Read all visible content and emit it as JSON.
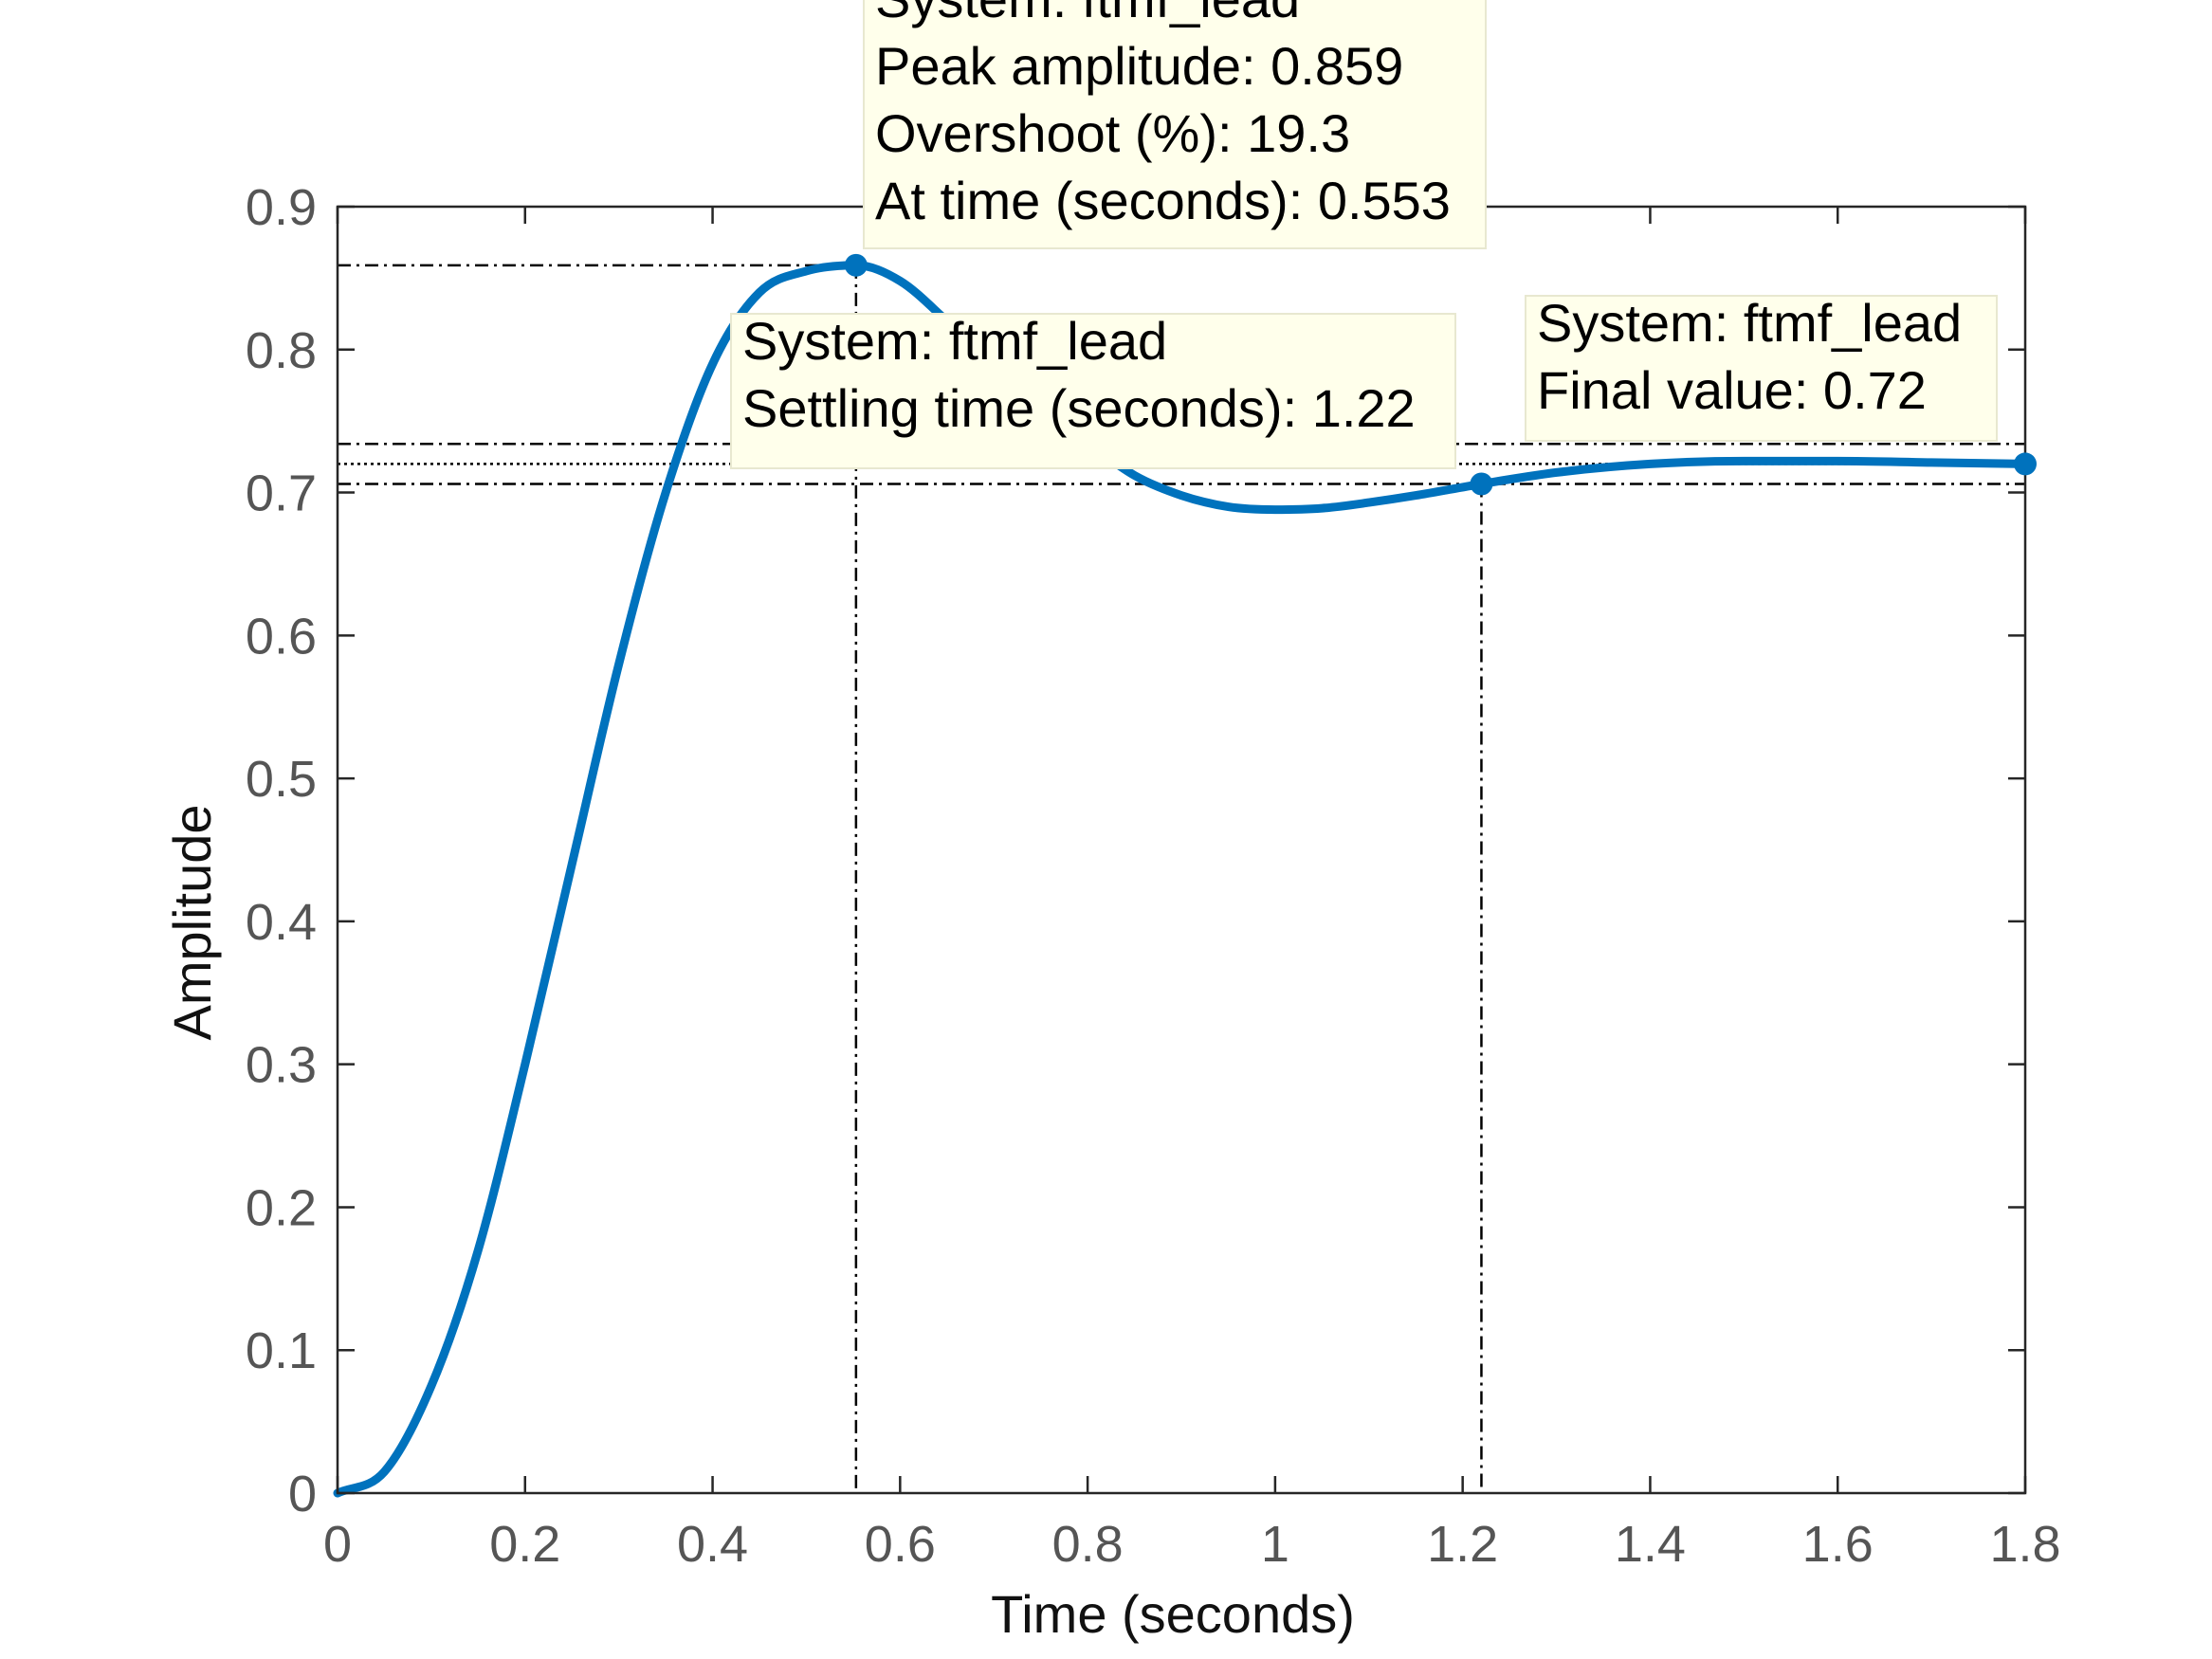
{
  "chart_data": {
    "type": "line",
    "xlabel": "Time (seconds)",
    "ylabel": "Amplitude",
    "xlim": [
      0,
      1.8
    ],
    "ylim": [
      0,
      0.9
    ],
    "x_ticks": [
      "0",
      "0.2",
      "0.4",
      "0.6",
      "0.8",
      "1",
      "1.2",
      "1.4",
      "1.6",
      "1.8"
    ],
    "y_ticks": [
      "0",
      "0.1",
      "0.2",
      "0.3",
      "0.4",
      "0.5",
      "0.6",
      "0.7",
      "0.8",
      "0.9"
    ],
    "grid": false,
    "series": [
      {
        "color": "#0072BD",
        "x": [
          0,
          0.05,
          0.1,
          0.15,
          0.2,
          0.25,
          0.3,
          0.35,
          0.4,
          0.45,
          0.5,
          0.553,
          0.6,
          0.65,
          0.7,
          0.75,
          0.8,
          0.85,
          0.9,
          0.95,
          1.0,
          1.05,
          1.1,
          1.15,
          1.22,
          1.3,
          1.4,
          1.5,
          1.6,
          1.7,
          1.8
        ],
        "y": [
          0,
          0.015,
          0.075,
          0.17,
          0.3,
          0.44,
          0.58,
          0.7,
          0.79,
          0.84,
          0.855,
          0.859,
          0.848,
          0.82,
          0.79,
          0.76,
          0.735,
          0.712,
          0.698,
          0.69,
          0.688,
          0.689,
          0.693,
          0.698,
          0.706,
          0.714,
          0.72,
          0.722,
          0.722,
          0.721,
          0.72
        ]
      }
    ],
    "reference_lines": {
      "settling_band": [
        0.706,
        0.734
      ],
      "final_value_line": 0.72
    },
    "datatips": [
      {
        "marker": {
          "x": 0.553,
          "y": 0.859
        },
        "lines": [
          "System: ftmf_lead",
          "Peak amplitude: 0.859",
          "Overshoot (%): 19.3",
          "At time (seconds): 0.553"
        ]
      },
      {
        "marker": {
          "x": 1.22,
          "y": 0.706
        },
        "lines": [
          "System: ftmf_lead",
          "Settling time (seconds): 1.22"
        ]
      },
      {
        "marker": {
          "x": 1.8,
          "y": 0.72
        },
        "lines": [
          "System: ftmf_lead",
          "Final value: 0.72"
        ]
      }
    ]
  }
}
